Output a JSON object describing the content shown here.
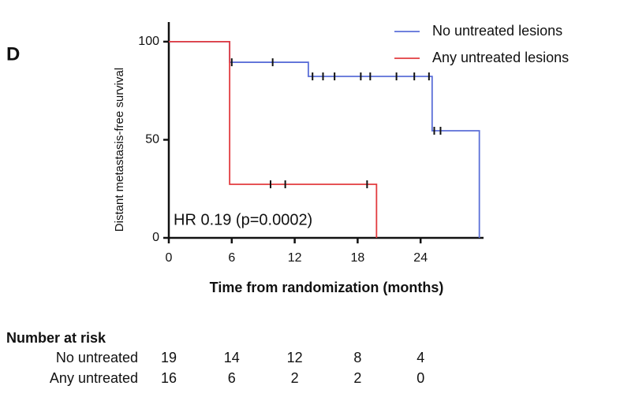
{
  "panel_label": "D",
  "chart_data": {
    "type": "km",
    "xlabel": "Time from randomization (months)",
    "ylabel": "Distant metastasis-free survival",
    "annotation": "HR 0.19 (p=0.0002)",
    "xlim": [
      0,
      30
    ],
    "xticks": [
      0,
      6,
      12,
      18,
      24
    ],
    "ylim": [
      0,
      110
    ],
    "yticks": [
      0,
      50,
      100
    ],
    "legend": "upper right",
    "series": [
      {
        "name": "No untreated lesions",
        "color": "#5b6fd8",
        "x": [
          0,
          5.8,
          13.3,
          25.1,
          29.6
        ],
        "values": [
          100,
          89.5,
          82.3,
          54.6,
          0
        ],
        "censored": [
          6.0,
          9.9,
          13.7,
          14.7,
          15.8,
          18.3,
          19.2,
          21.7,
          23.4,
          24.8,
          25.3,
          25.9
        ]
      },
      {
        "name": "Any untreated lesions",
        "color": "#e23b3f",
        "x": [
          0,
          5.8,
          19.8
        ],
        "values": [
          100,
          27.3,
          0
        ],
        "censored": [
          9.7,
          11.1,
          18.9
        ]
      }
    ],
    "risk_table": {
      "title": "Number at risk",
      "times": [
        0,
        6,
        12,
        18,
        24
      ],
      "rows": [
        {
          "name": "No untreated",
          "values": [
            19,
            14,
            12,
            8,
            4
          ]
        },
        {
          "name": "Any untreated",
          "values": [
            16,
            6,
            2,
            2,
            0
          ]
        }
      ]
    }
  }
}
